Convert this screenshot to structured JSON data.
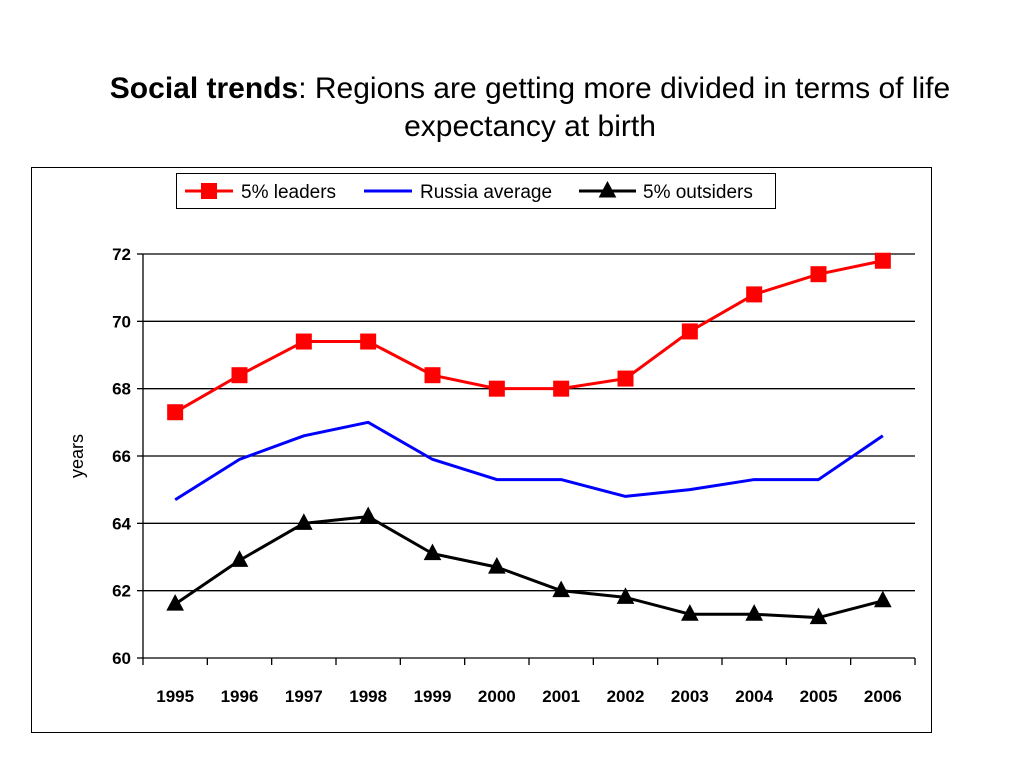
{
  "title": {
    "bold": "Social trends",
    "rest": ": Regions are getting more divided in terms of life expectancy at birth"
  },
  "chart_data": {
    "type": "line",
    "title": "Social trends: Regions are getting more divided in terms of life expectancy at birth",
    "xlabel": "",
    "ylabel": "years",
    "ylim": [
      60,
      72
    ],
    "yticks": [
      "60",
      "62",
      "64",
      "66",
      "68",
      "70",
      "72"
    ],
    "grid": "horizontal",
    "legend_position": "top",
    "categories": [
      "1995",
      "1996",
      "1997",
      "1998",
      "1999",
      "2000",
      "2001",
      "2002",
      "2003",
      "2004",
      "2005",
      "2006"
    ],
    "series": [
      {
        "name": "5% leaders",
        "color": "#ff0000",
        "marker": "square",
        "values": [
          67.3,
          68.4,
          69.4,
          69.4,
          68.4,
          68.0,
          68.0,
          68.3,
          69.7,
          70.8,
          71.4,
          71.8
        ]
      },
      {
        "name": "Russia average",
        "color": "#0000ff",
        "marker": "none",
        "values": [
          64.7,
          65.9,
          66.6,
          67.0,
          65.9,
          65.3,
          65.3,
          64.8,
          65.0,
          65.3,
          65.3,
          66.6
        ]
      },
      {
        "name": "5% outsiders",
        "color": "#000000",
        "marker": "triangle",
        "values": [
          61.6,
          62.9,
          64.0,
          64.2,
          63.1,
          62.7,
          62.0,
          61.8,
          61.3,
          61.3,
          61.2,
          61.7
        ]
      }
    ]
  }
}
